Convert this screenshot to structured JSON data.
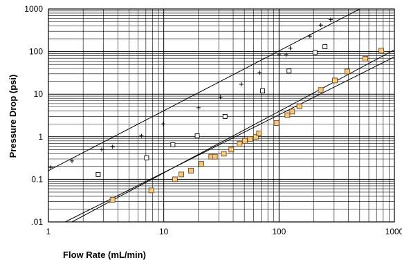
{
  "chart_data": {
    "type": "scatter",
    "title": "",
    "xlabel": "Flow Rate (mL/min)",
    "ylabel": "Pressure Drop (psi)",
    "x_scale": "log",
    "y_scale": "log",
    "xlim": [
      1,
      1000
    ],
    "ylim": [
      0.01,
      1000
    ],
    "grid": true,
    "x_ticks": [
      "1",
      "10",
      "100",
      "1000"
    ],
    "y_ticks": [
      "1000",
      "100",
      "10",
      "1",
      "0.1",
      ".01"
    ],
    "series": [
      {
        "marker": "plus",
        "color": "#000000",
        "points": [
          [
            1.05,
            0.19
          ],
          [
            1.6,
            0.27
          ],
          [
            2.9,
            0.5
          ],
          [
            3.6,
            0.58
          ],
          [
            6.4,
            1.05
          ],
          [
            9.9,
            2.0
          ],
          [
            20,
            4.8
          ],
          [
            31,
            8.5
          ],
          [
            47,
            17
          ],
          [
            68,
            32
          ],
          [
            100,
            85
          ],
          [
            115,
            85
          ],
          [
            125,
            120
          ],
          [
            185,
            230
          ],
          [
            230,
            420
          ],
          [
            280,
            560
          ]
        ]
      },
      {
        "marker": "open-square",
        "color": "#000000",
        "points": [
          [
            2.7,
            0.13
          ],
          [
            7.1,
            0.32
          ],
          [
            12,
            0.65
          ],
          [
            19.5,
            1.05
          ],
          [
            34,
            3.0
          ],
          [
            72,
            12
          ],
          [
            122,
            35
          ],
          [
            205,
            95
          ],
          [
            250,
            130
          ]
        ]
      },
      {
        "marker": "filled-square",
        "color": "#f7c77e",
        "points": [
          [
            3.6,
            0.033
          ],
          [
            7.8,
            0.055
          ],
          [
            12.5,
            0.1
          ],
          [
            14.2,
            0.13
          ],
          [
            17.2,
            0.16
          ],
          [
            21.2,
            0.23
          ],
          [
            25.8,
            0.34
          ],
          [
            27.8,
            0.34
          ],
          [
            33.2,
            0.4
          ],
          [
            38.5,
            0.5
          ],
          [
            45.5,
            0.68
          ],
          [
            50.5,
            0.8
          ],
          [
            56,
            0.88
          ],
          [
            63,
            1.0
          ],
          [
            67,
            1.2
          ],
          [
            95,
            2.1
          ],
          [
            118,
            3.2
          ],
          [
            130,
            3.9
          ],
          [
            150,
            5.2
          ],
          [
            230,
            12.5
          ],
          [
            305,
            21
          ],
          [
            390,
            34
          ],
          [
            560,
            68
          ],
          [
            770,
            105
          ]
        ]
      }
    ],
    "trend_lines": [
      [
        [
          1,
          0.16
        ],
        [
          500,
          1000
        ]
      ],
      [
        [
          1.6,
          0.01
        ],
        [
          1000,
          110
        ]
      ],
      [
        [
          1.4,
          0.01
        ],
        [
          1000,
          75
        ]
      ]
    ]
  }
}
